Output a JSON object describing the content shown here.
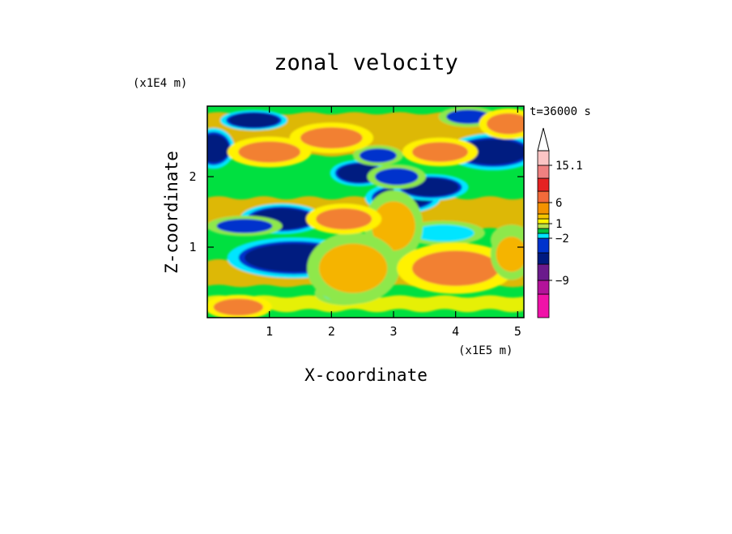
{
  "chart_data": {
    "type": "heatmap",
    "title": "zonal velocity",
    "xlabel": "X-coordinate",
    "ylabel": "Z-coordinate",
    "x_unit": "(x1E5 m)",
    "y_unit": "(x1E4 m)",
    "time_label": "t=36000 s",
    "xlim": [
      0.0,
      5.1
    ],
    "ylim": [
      0.0,
      3.0
    ],
    "x_ticks": [
      "1",
      "2",
      "3",
      "4",
      "5"
    ],
    "x_tick_values": [
      1,
      2,
      3,
      4,
      5
    ],
    "y_ticks": [
      "1",
      "2"
    ],
    "y_tick_values": [
      1,
      2
    ],
    "colorbar": {
      "labels": [
        "15.1",
        "6",
        "1",
        "−2",
        "−9"
      ],
      "colors": [
        "#fbc4c4",
        "#ef8080",
        "#e52222",
        "#f26a3a",
        "#f39200",
        "#f5c400",
        "#fff200",
        "#b8e04b",
        "#00c040",
        "#00e5ff",
        "#0033cc",
        "#001a80",
        "#6b1a8c",
        "#b3139a",
        "#f012a8"
      ],
      "extend_top": true
    },
    "colors": {
      "neg_strong": "#001a80",
      "neg": "#0033cc",
      "neg_weak": "#00e5ff",
      "near_zero_neg": "#00e040",
      "near_zero": "#8ee84b",
      "pos_weak": "#fff200",
      "pos": "#f5b400",
      "pos_strong": "#f28030"
    },
    "features": [
      {
        "kind": "band",
        "x": [
          0.0,
          5.1
        ],
        "z": [
          2.3,
          2.9
        ],
        "value": 2
      },
      {
        "kind": "band",
        "x": [
          0.0,
          5.1
        ],
        "z": [
          1.25,
          1.7
        ],
        "value": 3
      },
      {
        "kind": "band",
        "x": [
          0.0,
          5.1
        ],
        "z": [
          0.45,
          0.8
        ],
        "value": 2
      },
      {
        "kind": "band",
        "x": [
          0.0,
          5.1
        ],
        "z": [
          0.1,
          0.3
        ],
        "value": 1.5
      },
      {
        "kind": "blob",
        "x": 0.1,
        "z": 2.4,
        "rx": 0.25,
        "rz": 0.2,
        "value": -10
      },
      {
        "kind": "blob",
        "x": 0.75,
        "z": 2.8,
        "rx": 0.4,
        "rz": 0.1,
        "value": -8
      },
      {
        "kind": "blob",
        "x": 1.2,
        "z": 1.4,
        "rx": 0.5,
        "rz": 0.15,
        "value": -9
      },
      {
        "kind": "blob",
        "x": 0.6,
        "z": 1.3,
        "rx": 0.45,
        "rz": 0.1,
        "value": -5
      },
      {
        "kind": "blob",
        "x": 1.4,
        "z": 0.85,
        "rx": 0.8,
        "rz": 0.2,
        "value": -10
      },
      {
        "kind": "blob",
        "x": 2.45,
        "z": 2.05,
        "rx": 0.35,
        "rz": 0.13,
        "value": -8
      },
      {
        "kind": "blob",
        "x": 2.75,
        "z": 2.3,
        "rx": 0.3,
        "rz": 0.1,
        "value": -4
      },
      {
        "kind": "blob",
        "x": 3.15,
        "z": 1.7,
        "rx": 0.45,
        "rz": 0.15,
        "value": -8
      },
      {
        "kind": "blob",
        "x": 3.6,
        "z": 1.85,
        "rx": 0.45,
        "rz": 0.13,
        "value": -9
      },
      {
        "kind": "blob",
        "x": 3.05,
        "z": 2.0,
        "rx": 0.35,
        "rz": 0.12,
        "value": -5
      },
      {
        "kind": "blob",
        "x": 4.6,
        "z": 2.35,
        "rx": 0.55,
        "rz": 0.18,
        "value": -9
      },
      {
        "kind": "blob",
        "x": 4.2,
        "z": 2.85,
        "rx": 0.35,
        "rz": 0.1,
        "value": -6
      },
      {
        "kind": "blob",
        "x": 3.8,
        "z": 1.2,
        "rx": 0.5,
        "rz": 0.12,
        "value": -3
      },
      {
        "kind": "blob",
        "x": 2.2,
        "z": 0.35,
        "rx": 0.35,
        "rz": 0.12,
        "value": -3
      },
      {
        "kind": "blob",
        "x": 4.9,
        "z": 1.1,
        "rx": 0.25,
        "rz": 0.15,
        "value": -3
      },
      {
        "kind": "blob",
        "x": 3.0,
        "z": 1.3,
        "rx": 0.35,
        "rz": 0.35,
        "value": 3
      },
      {
        "kind": "blob",
        "x": 2.35,
        "z": 0.7,
        "rx": 0.55,
        "rz": 0.35,
        "value": 3
      },
      {
        "kind": "blob",
        "x": 4.0,
        "z": 0.7,
        "rx": 0.7,
        "rz": 0.25,
        "value": 4
      },
      {
        "kind": "blob",
        "x": 4.85,
        "z": 2.75,
        "rx": 0.35,
        "rz": 0.15,
        "value": 6
      },
      {
        "kind": "blob",
        "x": 3.75,
        "z": 2.35,
        "rx": 0.45,
        "rz": 0.14,
        "value": 6
      },
      {
        "kind": "blob",
        "x": 1.0,
        "z": 2.35,
        "rx": 0.5,
        "rz": 0.15,
        "value": 5
      },
      {
        "kind": "blob",
        "x": 2.0,
        "z": 2.55,
        "rx": 0.5,
        "rz": 0.15,
        "value": 4
      },
      {
        "kind": "blob",
        "x": 2.2,
        "z": 1.4,
        "rx": 0.45,
        "rz": 0.15,
        "value": 5
      },
      {
        "kind": "blob",
        "x": 0.5,
        "z": 0.15,
        "rx": 0.4,
        "rz": 0.12,
        "value": 4
      },
      {
        "kind": "blob",
        "x": 4.9,
        "z": 0.9,
        "rx": 0.25,
        "rz": 0.25,
        "value": 3
      }
    ]
  }
}
